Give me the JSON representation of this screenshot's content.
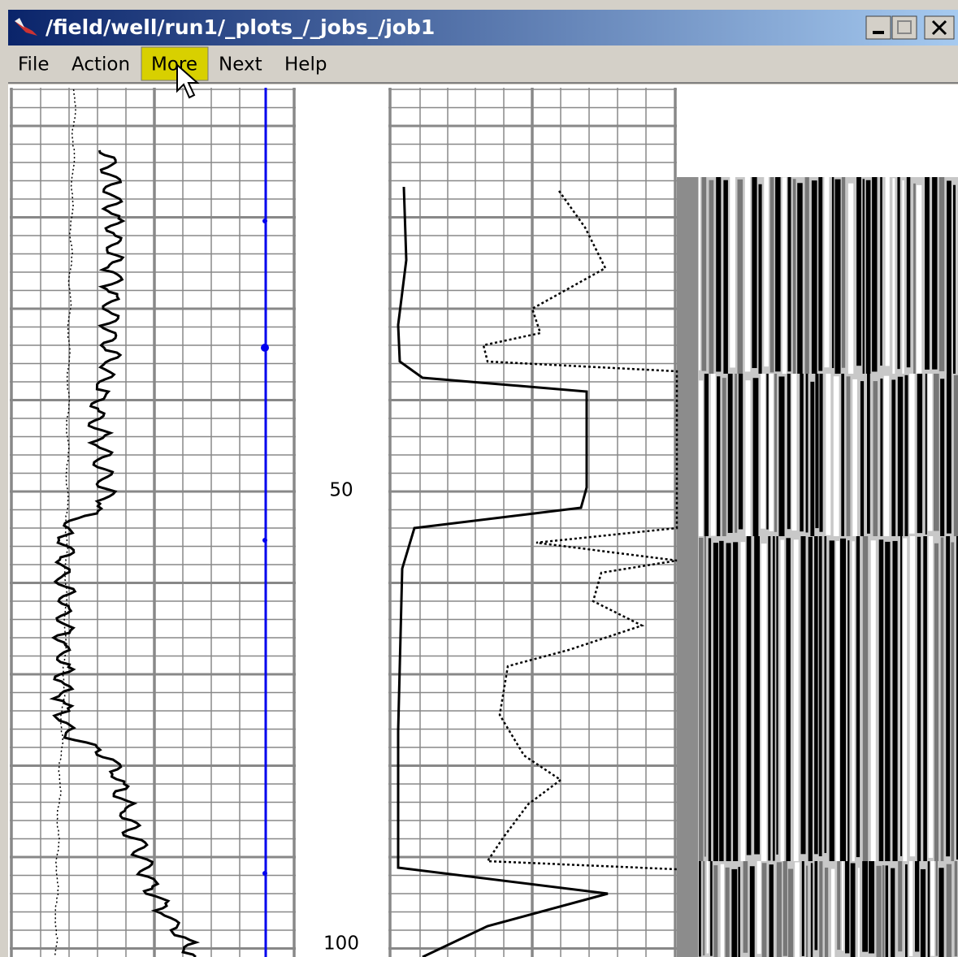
{
  "window": {
    "title": "/field/well/run1/_plots_/_jobs_/job1"
  },
  "menu": [
    "File",
    "Action",
    "More",
    "Next",
    "Help"
  ],
  "depth_labels": [
    50,
    100
  ]
}
